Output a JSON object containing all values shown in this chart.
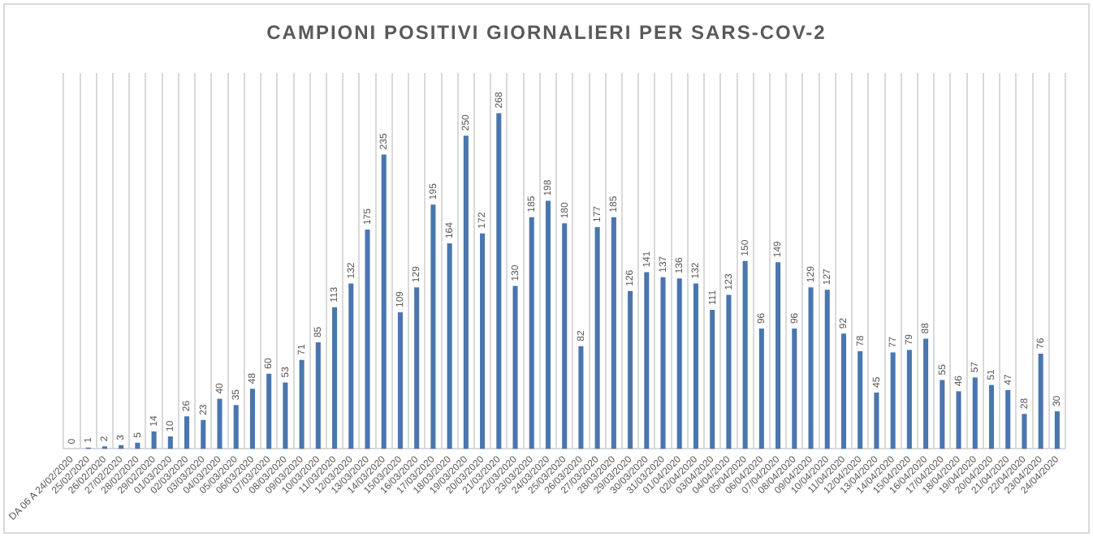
{
  "chart_data": {
    "type": "bar",
    "title": "CAMPIONI POSITIVI GIORNALIERI PER SARS-COV-2",
    "categories": [
      "DA 06 A 24/02/2020",
      "25/02/2020",
      "26/02/2020",
      "27/02/2020",
      "28/02/2020",
      "29/02/2020",
      "01/03/2020",
      "02/03/2020",
      "03/03/2020",
      "04/03/2020",
      "05/03/2020",
      "06/03/2020",
      "07/03/2020",
      "08/03/2020",
      "09/03/2020",
      "10/03/2020",
      "11/03/2020",
      "12/03/2020",
      "13/03/2020",
      "14/03/2020",
      "15/03/2020",
      "16/03/2020",
      "17/03/2020",
      "18/03/2020",
      "19/03/2020",
      "20/03/2020",
      "21/03/2020",
      "22/03/2020",
      "23/03/2020",
      "24/03/2020",
      "25/03/2020",
      "26/03/2020",
      "27/03/2020",
      "28/03/2020",
      "29/03/2020",
      "30/03/2020",
      "31/03/2020",
      "01/04/2020",
      "02/04/2020",
      "03/04/2020",
      "04/04/2020",
      "05/04/2020",
      "06/04/2020",
      "07/04/2020",
      "08/04/2020",
      "09/04/2020",
      "10/04/2020",
      "11/04/2020",
      "12/04/2020",
      "13/04/2020",
      "14/04/2020",
      "15/04/2020",
      "16/04/2020",
      "17/04/2020",
      "18/04/2020",
      "19/04/2020",
      "20/04/2020",
      "21/04/2020",
      "22/04/2020",
      "23/04/2020",
      "24/04/2020"
    ],
    "values": [
      0,
      1,
      2,
      3,
      5,
      14,
      10,
      26,
      23,
      40,
      35,
      48,
      60,
      53,
      71,
      85,
      113,
      132,
      175,
      235,
      109,
      129,
      195,
      164,
      250,
      172,
      268,
      130,
      185,
      198,
      180,
      82,
      177,
      185,
      126,
      141,
      137,
      136,
      132,
      111,
      123,
      150,
      96,
      149,
      96,
      129,
      127,
      92,
      78,
      45,
      77,
      79,
      88,
      55,
      46,
      57,
      51,
      47,
      28,
      76,
      30
    ],
    "color": "#4a76b0",
    "data_labels": true,
    "grid": "x",
    "tick_labels": "x"
  }
}
